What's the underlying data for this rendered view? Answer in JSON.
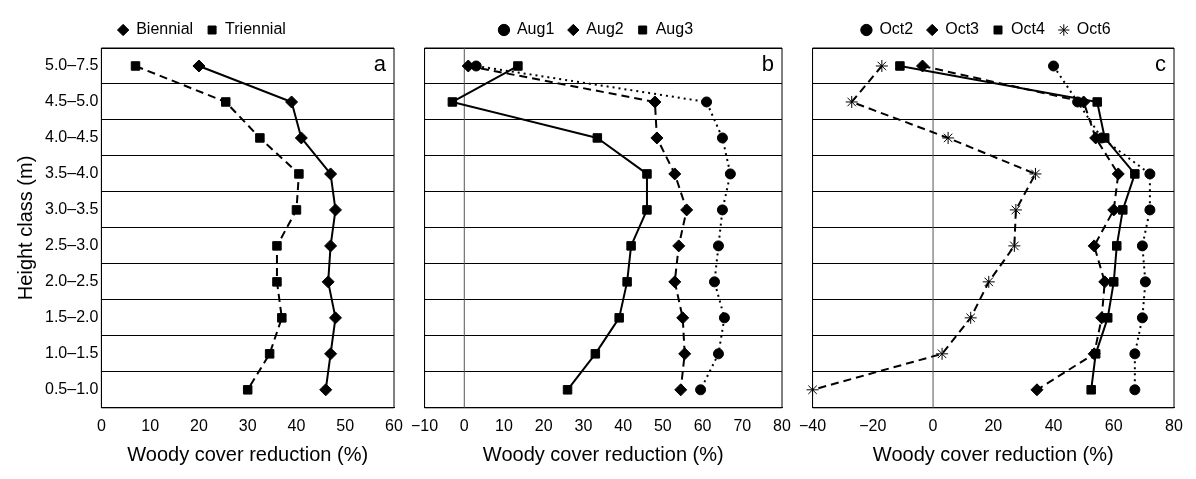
{
  "chart_data": [
    {
      "type": "line",
      "orientation": "horizontal",
      "ylabel": "Height class (m)",
      "xlabel": "Woody cover reduction (%)",
      "annotations": [
        "a"
      ],
      "categories": [
        "5.0–7.5",
        "4.5–5.0",
        "4.0–4.5",
        "3.5–4.0",
        "3.0–3.5",
        "2.5–3.0",
        "2.0–2.5",
        "1.5–2.0",
        "1.0–1.5",
        "0.5–1.0"
      ],
      "xlim": [
        0,
        60
      ],
      "xticks": [
        0,
        10,
        20,
        30,
        40,
        50,
        60
      ],
      "grid": "y",
      "legend": "top",
      "series": [
        {
          "name": "Biennial",
          "color": "#000000",
          "marker": "diamond",
          "line_style": "solid",
          "values": [
            20,
            39,
            41,
            47,
            48,
            47,
            46.5,
            48,
            47,
            46
          ]
        },
        {
          "name": "Triennial",
          "color": "#000000",
          "marker": "square",
          "line_style": "dashed",
          "values": [
            7,
            25.5,
            32.5,
            40.5,
            40,
            36,
            36,
            37,
            34.5,
            30
          ]
        }
      ]
    },
    {
      "type": "line",
      "orientation": "horizontal",
      "xlabel": "Woody cover reduction (%)",
      "annotations": [
        "b"
      ],
      "tick_labels": "x",
      "categories": [
        null,
        null,
        null,
        null,
        null,
        null,
        null,
        null,
        null,
        null
      ],
      "xlim": [
        -10,
        80
      ],
      "xticks": [
        {
          "value": -10,
          "label": "−10"
        },
        0,
        10,
        20,
        30,
        40,
        50,
        60,
        70,
        80
      ],
      "grid": "y",
      "legend": "top",
      "ref_lines": [
        {
          "axis": "x",
          "value": 0,
          "color": "#555555"
        }
      ],
      "series": [
        {
          "name": "Aug1",
          "color": "#000000",
          "marker": "circle",
          "line_style": "dotted",
          "values": [
            3,
            61,
            65,
            67,
            65,
            64,
            63,
            65.5,
            64,
            59.5
          ]
        },
        {
          "name": "Aug2",
          "color": "#000000",
          "marker": "diamond",
          "line_style": "dashed",
          "values": [
            1,
            48,
            48.5,
            53,
            56,
            54,
            53,
            55,
            55.5,
            54.5
          ]
        },
        {
          "name": "Aug3",
          "color": "#000000",
          "marker": "square",
          "line_style": "solid",
          "values": [
            13.5,
            -3,
            33.5,
            46,
            46,
            42,
            41,
            39,
            33,
            26
          ]
        }
      ]
    },
    {
      "type": "line",
      "orientation": "horizontal",
      "xlabel": "Woody cover reduction (%)",
      "annotations": [
        "c"
      ],
      "tick_labels": "x",
      "categories": [
        null,
        null,
        null,
        null,
        null,
        null,
        null,
        null,
        null,
        null
      ],
      "xlim": [
        -40,
        80
      ],
      "xticks": [
        {
          "value": -40,
          "label": "−40"
        },
        {
          "value": -20,
          "label": "−20"
        },
        0,
        20,
        40,
        60,
        80
      ],
      "grid": "y",
      "legend": "top",
      "ref_lines": [
        {
          "axis": "x",
          "value": 0,
          "color": "#555555"
        }
      ],
      "series": [
        {
          "name": "Oct2",
          "color": "#000000",
          "marker": "circle",
          "line_style": "dotted",
          "values": [
            40,
            48,
            56,
            72,
            72,
            69.5,
            70.5,
            69.5,
            67,
            67
          ]
        },
        {
          "name": "Oct3",
          "color": "#000000",
          "marker": "diamond",
          "line_style": "dashed",
          "values": [
            -3.5,
            50,
            54,
            61.5,
            60,
            53.5,
            57,
            56,
            53.5,
            34.5
          ]
        },
        {
          "name": "Oct4",
          "color": "#000000",
          "marker": "square",
          "line_style": "solid",
          "values": [
            -11,
            54.5,
            57,
            67,
            63,
            61,
            60,
            58,
            54,
            52.5
          ]
        },
        {
          "name": "Oct6",
          "color": "#000000",
          "marker": "cross",
          "line_style": "dashed",
          "values": [
            -17,
            -27,
            5,
            34,
            27.5,
            27,
            18.5,
            12.5,
            3,
            -40
          ]
        }
      ]
    }
  ]
}
